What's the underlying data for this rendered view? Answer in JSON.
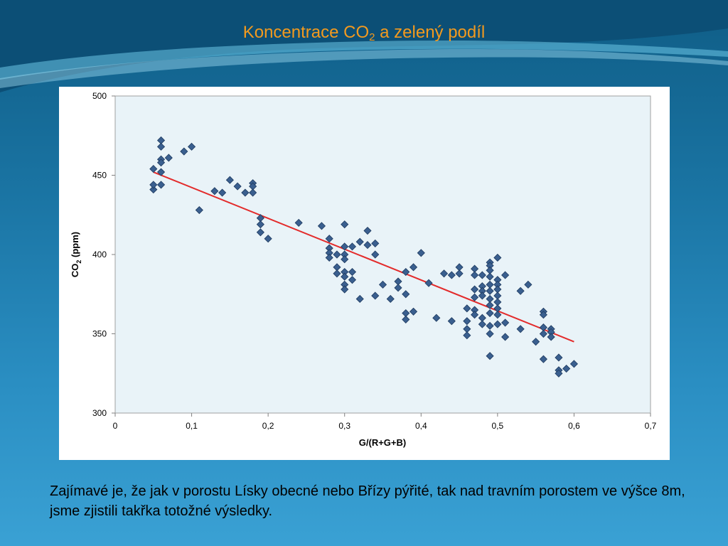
{
  "slide": {
    "title_main": "Koncentrace CO",
    "title_sub": "2",
    "title_rest": " a zelený podíl",
    "caption": "Zajímavé je, že jak v porostu Lísky obecné nebo Břízy pýřité, tak nad travním porostem ve výšce 8m, jsme zjistili takřka totožné výsledky."
  },
  "colors": {
    "title": "#f39a1e",
    "plot_bg": "#e9f3f8",
    "marker": "#3a5f8f",
    "trend": "#e32b2b"
  },
  "chart_data": {
    "type": "scatter",
    "title": "",
    "xlabel": "G/(R+G+B)",
    "ylabel_main": "CO",
    "ylabel_sub": "2",
    "ylabel_rest": " (ppm)",
    "xlim": [
      0,
      0.7
    ],
    "ylim": [
      300,
      500
    ],
    "xticks": [
      0,
      0.1,
      0.2,
      0.3,
      0.4,
      0.5,
      0.6,
      0.7
    ],
    "xtick_labels": [
      "0",
      "0,1",
      "0,2",
      "0,3",
      "0,4",
      "0,5",
      "0,6",
      "0,7"
    ],
    "yticks": [
      300,
      350,
      400,
      450,
      500
    ],
    "ytick_labels": [
      "300",
      "350",
      "400",
      "450",
      "500"
    ],
    "grid": "none",
    "legend": "none",
    "trendline": {
      "x": [
        0.05,
        0.6
      ],
      "y": [
        452,
        345
      ]
    },
    "points": [
      [
        0.05,
        441
      ],
      [
        0.05,
        444
      ],
      [
        0.05,
        454
      ],
      [
        0.06,
        472
      ],
      [
        0.06,
        468
      ],
      [
        0.06,
        460
      ],
      [
        0.06,
        458
      ],
      [
        0.06,
        452
      ],
      [
        0.06,
        444
      ],
      [
        0.07,
        461
      ],
      [
        0.09,
        465
      ],
      [
        0.1,
        468
      ],
      [
        0.11,
        428
      ],
      [
        0.13,
        440
      ],
      [
        0.14,
        439
      ],
      [
        0.15,
        447
      ],
      [
        0.16,
        443
      ],
      [
        0.17,
        439
      ],
      [
        0.18,
        445
      ],
      [
        0.18,
        443
      ],
      [
        0.18,
        439
      ],
      [
        0.19,
        423
      ],
      [
        0.19,
        419
      ],
      [
        0.19,
        414
      ],
      [
        0.2,
        410
      ],
      [
        0.24,
        420
      ],
      [
        0.27,
        418
      ],
      [
        0.28,
        410
      ],
      [
        0.28,
        404
      ],
      [
        0.28,
        401
      ],
      [
        0.28,
        398
      ],
      [
        0.29,
        400
      ],
      [
        0.29,
        392
      ],
      [
        0.29,
        388
      ],
      [
        0.3,
        419
      ],
      [
        0.3,
        405
      ],
      [
        0.3,
        400
      ],
      [
        0.3,
        397
      ],
      [
        0.3,
        389
      ],
      [
        0.3,
        386
      ],
      [
        0.3,
        381
      ],
      [
        0.3,
        378
      ],
      [
        0.31,
        405
      ],
      [
        0.31,
        389
      ],
      [
        0.31,
        384
      ],
      [
        0.32,
        408
      ],
      [
        0.32,
        372
      ],
      [
        0.33,
        415
      ],
      [
        0.33,
        406
      ],
      [
        0.34,
        407
      ],
      [
        0.34,
        400
      ],
      [
        0.34,
        374
      ],
      [
        0.35,
        381
      ],
      [
        0.36,
        372
      ],
      [
        0.37,
        383
      ],
      [
        0.37,
        379
      ],
      [
        0.38,
        389
      ],
      [
        0.38,
        375
      ],
      [
        0.38,
        363
      ],
      [
        0.38,
        359
      ],
      [
        0.39,
        392
      ],
      [
        0.39,
        364
      ],
      [
        0.4,
        401
      ],
      [
        0.41,
        382
      ],
      [
        0.42,
        360
      ],
      [
        0.43,
        388
      ],
      [
        0.44,
        387
      ],
      [
        0.44,
        358
      ],
      [
        0.45,
        392
      ],
      [
        0.45,
        388
      ],
      [
        0.46,
        366
      ],
      [
        0.46,
        358
      ],
      [
        0.46,
        353
      ],
      [
        0.46,
        349
      ],
      [
        0.47,
        391
      ],
      [
        0.47,
        387
      ],
      [
        0.47,
        378
      ],
      [
        0.47,
        373
      ],
      [
        0.47,
        365
      ],
      [
        0.47,
        362
      ],
      [
        0.48,
        387
      ],
      [
        0.48,
        380
      ],
      [
        0.48,
        377
      ],
      [
        0.48,
        374
      ],
      [
        0.48,
        360
      ],
      [
        0.48,
        356
      ],
      [
        0.49,
        395
      ],
      [
        0.49,
        393
      ],
      [
        0.49,
        390
      ],
      [
        0.49,
        386
      ],
      [
        0.49,
        381
      ],
      [
        0.49,
        377
      ],
      [
        0.49,
        372
      ],
      [
        0.49,
        368
      ],
      [
        0.49,
        363
      ],
      [
        0.49,
        355
      ],
      [
        0.49,
        350
      ],
      [
        0.49,
        336
      ],
      [
        0.5,
        398
      ],
      [
        0.5,
        384
      ],
      [
        0.5,
        381
      ],
      [
        0.5,
        378
      ],
      [
        0.5,
        374
      ],
      [
        0.5,
        370
      ],
      [
        0.5,
        366
      ],
      [
        0.5,
        362
      ],
      [
        0.5,
        356
      ],
      [
        0.51,
        387
      ],
      [
        0.51,
        357
      ],
      [
        0.51,
        348
      ],
      [
        0.53,
        377
      ],
      [
        0.53,
        353
      ],
      [
        0.54,
        381
      ],
      [
        0.55,
        345
      ],
      [
        0.56,
        364
      ],
      [
        0.56,
        362
      ],
      [
        0.56,
        354
      ],
      [
        0.56,
        350
      ],
      [
        0.56,
        334
      ],
      [
        0.57,
        353
      ],
      [
        0.57,
        351
      ],
      [
        0.57,
        348
      ],
      [
        0.58,
        335
      ],
      [
        0.58,
        327
      ],
      [
        0.58,
        325
      ],
      [
        0.59,
        328
      ],
      [
        0.6,
        331
      ]
    ]
  }
}
